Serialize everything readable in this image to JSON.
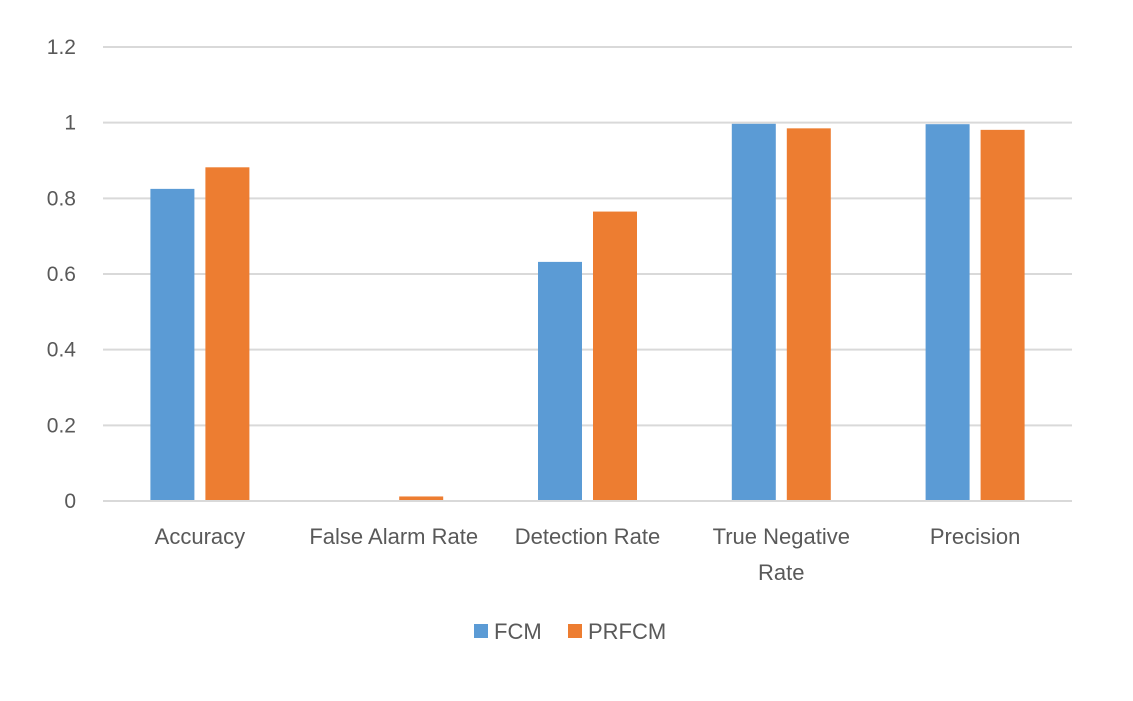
{
  "chart_data": {
    "type": "bar",
    "title": "",
    "xlabel": "",
    "ylabel": "",
    "categories": [
      "Accuracy",
      "False Alarm Rate",
      "Detection Rate",
      "True Negative Rate",
      "Precision"
    ],
    "category_lines": [
      [
        "Accuracy"
      ],
      [
        "False Alarm Rate"
      ],
      [
        "Detection Rate"
      ],
      [
        "True Negative",
        "Rate"
      ],
      [
        "Precision"
      ]
    ],
    "series": [
      {
        "name": "FCM",
        "color": "#5B9BD5",
        "values": [
          0.825,
          0.0,
          0.632,
          0.997,
          0.996
        ]
      },
      {
        "name": "PRFCM",
        "color": "#ED7D31",
        "values": [
          0.882,
          0.012,
          0.765,
          0.985,
          0.981
        ]
      }
    ],
    "ylim": [
      0,
      1.2
    ],
    "yticks": [
      "0",
      "0.2",
      "0.4",
      "0.6",
      "0.8",
      "1",
      "1.2"
    ],
    "grid": true,
    "legend_position": "bottom"
  }
}
